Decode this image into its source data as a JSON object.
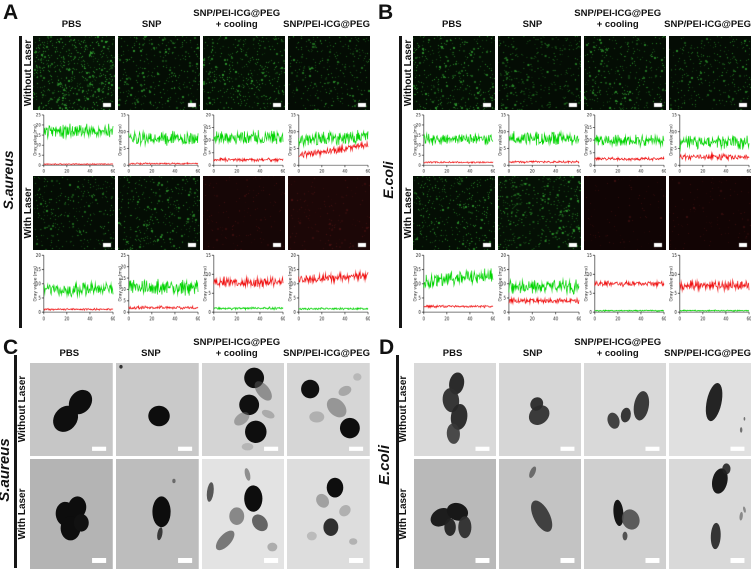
{
  "panels": {
    "A": {
      "letter": "A",
      "organism": "S.aureus",
      "content": "fluorescence"
    },
    "B": {
      "letter": "B",
      "organism": "E.coli",
      "content": "fluorescence"
    },
    "C": {
      "letter": "C",
      "organism": "S.aureus",
      "content": "tem"
    },
    "D": {
      "letter": "D",
      "organism": "E.coli",
      "content": "tem"
    }
  },
  "columns": {
    "c1": "PBS",
    "c2": "SNP",
    "c3a": "SNP/PEI-ICG@PEG",
    "c3b": "+ cooling",
    "c4": "SNP/PEI-ICG@PEG"
  },
  "row_labels": {
    "without": "Without Laser",
    "with": "With Laser"
  },
  "chart_data": {
    "type": "line",
    "ylabel": "Gray value (mv)",
    "x_range": [
      0,
      60
    ],
    "xticks": [
      0,
      20,
      40,
      60
    ],
    "ytick_step": 5,
    "series_colors": {
      "green": "#00d400",
      "red": "#f01010"
    },
    "plots": [
      {
        "panel": "A",
        "laser": "Without Laser",
        "treatment": "PBS",
        "ymax": 25,
        "green": {
          "mean": 17,
          "amp": 4,
          "trend": 0
        },
        "red": {
          "mean": 0.6,
          "amp": 0.3,
          "trend": 0
        }
      },
      {
        "panel": "A",
        "laser": "Without Laser",
        "treatment": "SNP",
        "ymax": 15,
        "green": {
          "mean": 8,
          "amp": 2.5,
          "trend": 0
        },
        "red": {
          "mean": 0.5,
          "amp": 0.3,
          "trend": 0
        }
      },
      {
        "panel": "A",
        "laser": "Without Laser",
        "treatment": "SNP/PEI-ICG@PEG + cooling",
        "ymax": 20,
        "green": {
          "mean": 11,
          "amp": 3,
          "trend": 0
        },
        "red": {
          "mean": 2.2,
          "amp": 0.8,
          "trend": 0
        }
      },
      {
        "panel": "A",
        "laser": "Without Laser",
        "treatment": "SNP/PEI-ICG@PEG",
        "ymax": 15,
        "green": {
          "mean": 8,
          "amp": 2.5,
          "trend": 1
        },
        "red": {
          "mean": 4.5,
          "amp": 1.2,
          "trend": 3
        }
      },
      {
        "panel": "A",
        "laser": "With Laser",
        "treatment": "PBS",
        "ymax": 20,
        "green": {
          "mean": 8,
          "amp": 3,
          "trend": 0
        },
        "red": {
          "mean": 1,
          "amp": 0.4,
          "trend": 0
        }
      },
      {
        "panel": "A",
        "laser": "With Laser",
        "treatment": "SNP",
        "ymax": 25,
        "green": {
          "mean": 11,
          "amp": 4,
          "trend": 0
        },
        "red": {
          "mean": 2,
          "amp": 0.8,
          "trend": 0
        }
      },
      {
        "panel": "A",
        "laser": "With Laser",
        "treatment": "SNP/PEI-ICG@PEG + cooling",
        "ymax": 15,
        "green": {
          "mean": 1,
          "amp": 0.4,
          "trend": 0
        },
        "red": {
          "mean": 8,
          "amp": 1.5,
          "trend": 0
        }
      },
      {
        "panel": "A",
        "laser": "With Laser",
        "treatment": "SNP/PEI-ICG@PEG",
        "ymax": 20,
        "green": {
          "mean": 1.2,
          "amp": 0.4,
          "trend": 0
        },
        "red": {
          "mean": 12,
          "amp": 2,
          "trend": 2
        }
      },
      {
        "panel": "B",
        "laser": "Without Laser",
        "treatment": "PBS",
        "ymax": 25,
        "green": {
          "mean": 13,
          "amp": 3.5,
          "trend": 1
        },
        "red": {
          "mean": 1.5,
          "amp": 0.5,
          "trend": 0
        }
      },
      {
        "panel": "B",
        "laser": "Without Laser",
        "treatment": "SNP",
        "ymax": 15,
        "green": {
          "mean": 8,
          "amp": 2.5,
          "trend": 0
        },
        "red": {
          "mean": 1,
          "amp": 0.4,
          "trend": 0
        }
      },
      {
        "panel": "B",
        "laser": "Without Laser",
        "treatment": "SNP/PEI-ICG@PEG + cooling",
        "ymax": 20,
        "green": {
          "mean": 10,
          "amp": 3,
          "trend": 0
        },
        "red": {
          "mean": 2.5,
          "amp": 0.8,
          "trend": 0
        }
      },
      {
        "panel": "B",
        "laser": "Without Laser",
        "treatment": "SNP/PEI-ICG@PEG",
        "ymax": 15,
        "green": {
          "mean": 7,
          "amp": 2.5,
          "trend": 0
        },
        "red": {
          "mean": 2.5,
          "amp": 1,
          "trend": 0
        }
      },
      {
        "panel": "B",
        "laser": "With Laser",
        "treatment": "PBS",
        "ymax": 20,
        "green": {
          "mean": 12,
          "amp": 3,
          "trend": 2
        },
        "red": {
          "mean": 2,
          "amp": 0.5,
          "trend": 0
        }
      },
      {
        "panel": "B",
        "laser": "With Laser",
        "treatment": "SNP",
        "ymax": 20,
        "green": {
          "mean": 9,
          "amp": 3,
          "trend": 0
        },
        "red": {
          "mean": 4,
          "amp": 1.2,
          "trend": 0
        }
      },
      {
        "panel": "B",
        "laser": "With Laser",
        "treatment": "SNP/PEI-ICG@PEG + cooling",
        "ymax": 15,
        "green": {
          "mean": 0.4,
          "amp": 0.2,
          "trend": 0
        },
        "red": {
          "mean": 7.5,
          "amp": 0.8,
          "trend": 0
        }
      },
      {
        "panel": "B",
        "laser": "With Laser",
        "treatment": "SNP/PEI-ICG@PEG",
        "ymax": 15,
        "green": {
          "mean": 0.4,
          "amp": 0.2,
          "trend": 0
        },
        "red": {
          "mean": 7,
          "amp": 1.5,
          "trend": 0
        }
      }
    ]
  },
  "fluorescence_images": [
    {
      "panel": "A",
      "laser": "Without Laser",
      "treatment": "PBS",
      "base": "#051105",
      "dot": "#2f9e2f",
      "density": 600
    },
    {
      "panel": "A",
      "laser": "Without Laser",
      "treatment": "SNP",
      "base": "#040d04",
      "dot": "#2a8f2a",
      "density": 350
    },
    {
      "panel": "A",
      "laser": "Without Laser",
      "treatment": "SNP/PEI-ICG@PEG + cooling",
      "base": "#040f04",
      "dot": "#2d962d",
      "density": 420
    },
    {
      "panel": "A",
      "laser": "Without Laser",
      "treatment": "SNP/PEI-ICG@PEG",
      "base": "#040c04",
      "dot": "#288828",
      "density": 300
    },
    {
      "panel": "A",
      "laser": "With Laser",
      "treatment": "PBS",
      "base": "#040c04",
      "dot": "#278727",
      "density": 300
    },
    {
      "panel": "A",
      "laser": "With Laser",
      "treatment": "SNP",
      "base": "#040d04",
      "dot": "#2a8f2a",
      "density": 340
    },
    {
      "panel": "A",
      "laser": "With Laser",
      "treatment": "SNP/PEI-ICG@PEG + cooling",
      "base": "#160606",
      "dot": "#431111",
      "density": 140
    },
    {
      "panel": "A",
      "laser": "With Laser",
      "treatment": "SNP/PEI-ICG@PEG",
      "base": "#1c0707",
      "dot": "#4a1212",
      "density": 150
    },
    {
      "panel": "B",
      "laser": "Without Laser",
      "treatment": "PBS",
      "base": "#040e04",
      "dot": "#2c932c",
      "density": 400
    },
    {
      "panel": "B",
      "laser": "Without Laser",
      "treatment": "SNP",
      "base": "#040c04",
      "dot": "#288828",
      "density": 320
    },
    {
      "panel": "B",
      "laser": "Without Laser",
      "treatment": "SNP/PEI-ICG@PEG + cooling",
      "base": "#040d04",
      "dot": "#2a8f2a",
      "density": 350
    },
    {
      "panel": "B",
      "laser": "Without Laser",
      "treatment": "SNP/PEI-ICG@PEG",
      "base": "#040c04",
      "dot": "#278727",
      "density": 300
    },
    {
      "panel": "B",
      "laser": "With Laser",
      "treatment": "PBS",
      "base": "#040e04",
      "dot": "#2c932c",
      "density": 380
    },
    {
      "panel": "B",
      "laser": "With Laser",
      "treatment": "SNP",
      "base": "#051005",
      "dot": "#2f9e2f",
      "density": 420
    },
    {
      "panel": "B",
      "laser": "With Laser",
      "treatment": "SNP/PEI-ICG@PEG + cooling",
      "base": "#100404",
      "dot": "#3a0f0f",
      "density": 100
    },
    {
      "panel": "B",
      "laser": "With Laser",
      "treatment": "SNP/PEI-ICG@PEG",
      "base": "#120404",
      "dot": "#3d1010",
      "density": 110
    }
  ],
  "tem_images": [
    {
      "panel": "C",
      "laser": "Without Laser",
      "treatment": "PBS",
      "bg": "#c6c6c6",
      "shapes": [
        [
          43,
          60,
          16,
          13,
          -35,
          "#0e0e0e",
          1
        ],
        [
          61,
          42,
          15,
          12,
          -35,
          "#0e0e0e",
          1
        ]
      ]
    },
    {
      "panel": "C",
      "laser": "Without Laser",
      "treatment": "SNP",
      "bg": "#c9c9c9",
      "shapes": [
        [
          52,
          57,
          13,
          11,
          0,
          "#0d0d0d",
          1
        ],
        [
          6,
          4,
          2,
          2,
          0,
          "#333333",
          1
        ]
      ]
    },
    {
      "panel": "C",
      "laser": "Without Laser",
      "treatment": "SNP/PEI-ICG@PEG + cooling",
      "bg": "#d4d4d4",
      "shapes": [
        [
          63,
          16,
          12,
          11,
          0,
          "#101010",
          1
        ],
        [
          57,
          45,
          12,
          11,
          0,
          "#101010",
          1
        ],
        [
          65,
          74,
          13,
          12,
          0,
          "#0e0e0e",
          1
        ],
        [
          74,
          30,
          13,
          7,
          45,
          "#555555",
          0.55
        ],
        [
          48,
          60,
          10,
          6,
          -30,
          "#666666",
          0.5
        ],
        [
          80,
          55,
          8,
          4,
          20,
          "#777777",
          0.45
        ],
        [
          55,
          90,
          7,
          4,
          0,
          "#888888",
          0.4
        ]
      ]
    },
    {
      "panel": "C",
      "laser": "Without Laser",
      "treatment": "SNP/PEI-ICG@PEG",
      "bg": "#d6d6d6",
      "shapes": [
        [
          28,
          28,
          11,
          10,
          0,
          "#101010",
          1
        ],
        [
          76,
          70,
          12,
          11,
          0,
          "#0e0e0e",
          1
        ],
        [
          60,
          48,
          13,
          9,
          35,
          "#6a6a6a",
          0.6
        ],
        [
          36,
          58,
          9,
          6,
          0,
          "#8a8a8a",
          0.5
        ],
        [
          70,
          30,
          8,
          5,
          -20,
          "#777777",
          0.5
        ],
        [
          85,
          15,
          5,
          4,
          0,
          "#999999",
          0.5
        ]
      ]
    },
    {
      "panel": "C",
      "laser": "With Laser",
      "treatment": "PBS",
      "bg": "#b4b4b4",
      "shapes": [
        [
          43,
          50,
          12,
          11,
          15,
          "#0d0d0d",
          1
        ],
        [
          57,
          44,
          11,
          10,
          -10,
          "#0d0d0d",
          1
        ],
        [
          49,
          63,
          12,
          11,
          0,
          "#0d0d0d",
          1
        ],
        [
          62,
          58,
          9,
          8,
          0,
          "#111111",
          1
        ]
      ]
    },
    {
      "panel": "C",
      "laser": "With Laser",
      "treatment": "SNP",
      "bg": "#bdbdbd",
      "shapes": [
        [
          55,
          48,
          11,
          14,
          0,
          "#0d0d0d",
          1
        ],
        [
          53,
          68,
          3,
          6,
          15,
          "#2a2a2a",
          0.9
        ],
        [
          70,
          20,
          2,
          2,
          0,
          "#555555",
          0.8
        ]
      ]
    },
    {
      "panel": "C",
      "laser": "With Laser",
      "treatment": "SNP/PEI-ICG@PEG + cooling",
      "bg": "#e3e3e3",
      "shapes": [
        [
          62,
          36,
          11,
          12,
          0,
          "#0d0d0d",
          1
        ],
        [
          42,
          52,
          9,
          8,
          0,
          "#6a6a6a",
          0.75
        ],
        [
          28,
          74,
          13,
          6,
          -35,
          "#4a4a4a",
          0.7
        ],
        [
          70,
          58,
          10,
          7,
          25,
          "#3a3a3a",
          0.75
        ],
        [
          10,
          30,
          4,
          9,
          10,
          "#333333",
          0.8
        ],
        [
          55,
          14,
          3,
          6,
          -20,
          "#555555",
          0.6
        ],
        [
          85,
          80,
          6,
          4,
          0,
          "#777777",
          0.5
        ]
      ]
    },
    {
      "panel": "C",
      "laser": "With Laser",
      "treatment": "SNP/PEI-ICG@PEG",
      "bg": "#dddddd",
      "shapes": [
        [
          58,
          26,
          10,
          9,
          0,
          "#0e0e0e",
          1
        ],
        [
          53,
          62,
          9,
          8,
          0,
          "#1c1c1c",
          0.9
        ],
        [
          43,
          38,
          8,
          6,
          20,
          "#7a7a7a",
          0.6
        ],
        [
          70,
          47,
          7,
          5,
          -15,
          "#8a8a8a",
          0.55
        ],
        [
          30,
          70,
          6,
          4,
          0,
          "#999999",
          0.5
        ],
        [
          80,
          75,
          5,
          3,
          0,
          "#888888",
          0.5
        ]
      ]
    },
    {
      "panel": "D",
      "laser": "Without Laser",
      "treatment": "PBS",
      "bg": "#d9d9d9",
      "shapes": [
        [
          52,
          22,
          9,
          12,
          15,
          "#222222",
          0.95
        ],
        [
          45,
          40,
          10,
          13,
          -10,
          "#2e2e2e",
          0.95
        ],
        [
          55,
          58,
          10,
          14,
          10,
          "#262626",
          0.95
        ],
        [
          48,
          76,
          8,
          11,
          -5,
          "#383838",
          0.9
        ]
      ]
    },
    {
      "panel": "D",
      "laser": "Without Laser",
      "treatment": "SNP",
      "bg": "#d6d6d6",
      "shapes": [
        [
          49,
          56,
          13,
          10,
          -25,
          "#333333",
          0.95
        ],
        [
          46,
          44,
          8,
          7,
          -25,
          "#2a2a2a",
          0.95
        ]
      ]
    },
    {
      "panel": "D",
      "laser": "Without Laser",
      "treatment": "SNP/PEI-ICG@PEG + cooling",
      "bg": "#d9d9d9",
      "shapes": [
        [
          36,
          62,
          7,
          9,
          -25,
          "#3a3a3a",
          0.95
        ],
        [
          51,
          56,
          6,
          8,
          15,
          "#2e2e2e",
          0.95
        ],
        [
          70,
          46,
          9,
          16,
          12,
          "#333333",
          0.95
        ]
      ]
    },
    {
      "panel": "D",
      "laser": "Without Laser",
      "treatment": "SNP/PEI-ICG@PEG",
      "bg": "#e0e0e0",
      "shapes": [
        [
          55,
          42,
          9,
          21,
          14,
          "#242424",
          1
        ],
        [
          88,
          72,
          1.5,
          3,
          0,
          "#555555",
          0.8
        ],
        [
          92,
          60,
          1,
          2,
          0,
          "#555555",
          0.8
        ]
      ]
    },
    {
      "panel": "D",
      "laser": "With Laser",
      "treatment": "PBS",
      "bg": "#b9b9b9",
      "shapes": [
        [
          33,
          53,
          13,
          8,
          -15,
          "#1d1d1d",
          1
        ],
        [
          53,
          48,
          13,
          8,
          8,
          "#181818",
          1
        ],
        [
          62,
          62,
          8,
          10,
          0,
          "#2e2e2e",
          0.95
        ],
        [
          44,
          62,
          7,
          8,
          0,
          "#222222",
          0.95
        ]
      ]
    },
    {
      "panel": "D",
      "laser": "With Laser",
      "treatment": "SNP",
      "bg": "#c3c3c3",
      "shapes": [
        [
          52,
          52,
          9,
          17,
          -40,
          "#3a3a3a",
          0.95
        ],
        [
          41,
          12,
          3,
          6,
          35,
          "#555555",
          0.8
        ]
      ]
    },
    {
      "panel": "D",
      "laser": "With Laser",
      "treatment": "SNP/PEI-ICG@PEG + cooling",
      "bg": "#cfcfcf",
      "shapes": [
        [
          42,
          49,
          6,
          12,
          -8,
          "#161616",
          1
        ],
        [
          57,
          55,
          11,
          9,
          18,
          "#4e4e4e",
          0.9
        ],
        [
          50,
          70,
          3,
          4,
          0,
          "#333333",
          0.8
        ]
      ]
    },
    {
      "panel": "D",
      "laser": "With Laser",
      "treatment": "SNP/PEI-ICG@PEG",
      "bg": "#d9d9d9",
      "shapes": [
        [
          62,
          20,
          9,
          12,
          25,
          "#1a1a1a",
          1
        ],
        [
          70,
          9,
          5,
          5,
          0,
          "#222222",
          0.9
        ],
        [
          57,
          70,
          6,
          12,
          4,
          "#2c2c2c",
          0.95
        ],
        [
          88,
          52,
          2,
          4,
          10,
          "#555555",
          0.6
        ],
        [
          92,
          46,
          1.5,
          3,
          -20,
          "#555555",
          0.6
        ]
      ]
    }
  ]
}
